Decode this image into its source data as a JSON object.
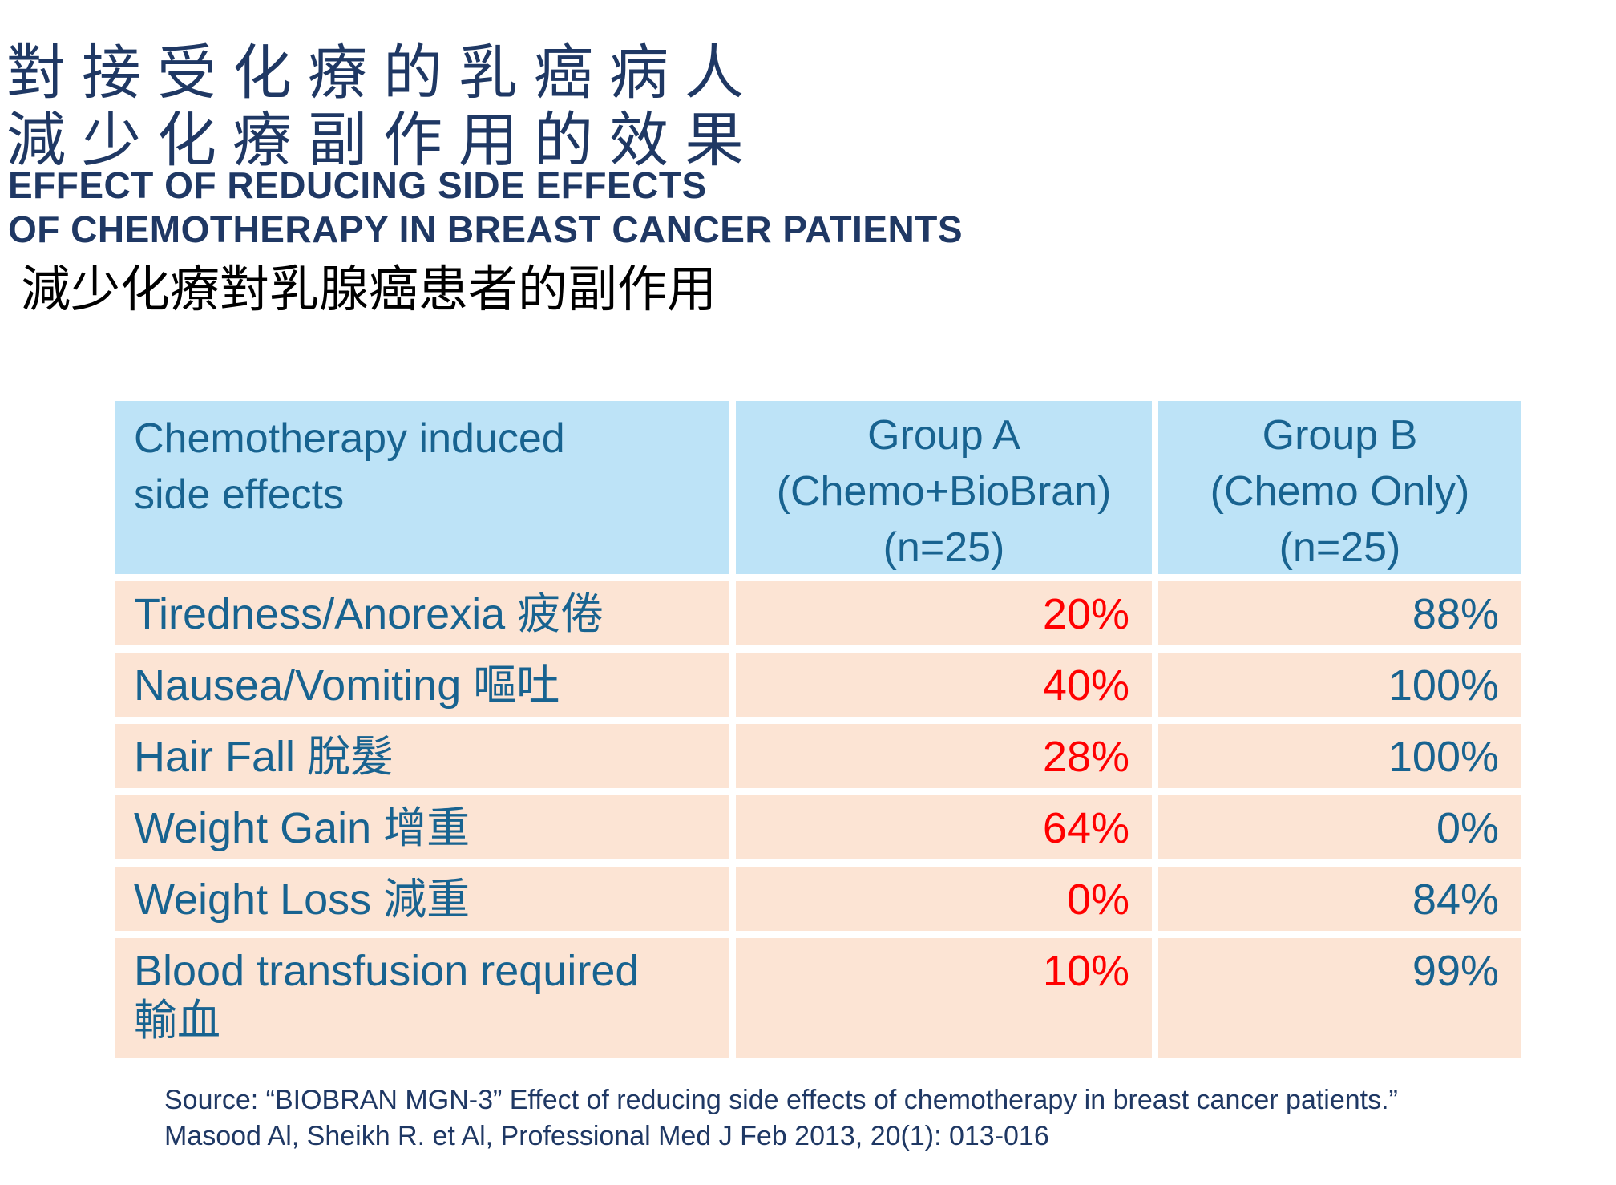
{
  "slide": {
    "title_zh_line1": "對接受化療的乳癌病人",
    "title_zh_line2": "減少化療副作用的效果",
    "title_en_line1": "EFFECT OF REDUCING SIDE EFFECTS",
    "title_en_line2": "OF CHEMOTHERAPY IN BREAST CANCER PATIENTS",
    "subtitle_zh": "減少化療對乳腺癌患者的副作用"
  },
  "colors": {
    "title_navy": "#1F3864",
    "table_text_teal": "#186390",
    "group_a_value_red": "#FF0000",
    "header_bg_blue": "#BDE3F7",
    "row_bg_peach": "#FCE4D4",
    "page_bg": "#FFFFFF"
  },
  "table": {
    "header": {
      "side_effects_lines": [
        "Chemotherapy induced",
        "side effects"
      ],
      "group_a_lines": [
        "Group A",
        "(Chemo+BioBran)",
        "(n=25)"
      ],
      "group_b_lines": [
        "Group B",
        "(Chemo Only)",
        "(n=25)"
      ]
    },
    "rows": [
      {
        "label": "Tiredness/Anorexia 疲倦",
        "group_a": "20%",
        "group_b": "88%"
      },
      {
        "label": "Nausea/Vomiting 嘔吐",
        "group_a": "40%",
        "group_b": "100%"
      },
      {
        "label": "Hair Fall 脫髮",
        "group_a": "28%",
        "group_b": "100%"
      },
      {
        "label": "Weight Gain 增重",
        "group_a": "64%",
        "group_b": "0%"
      },
      {
        "label": "Weight Loss 減重",
        "group_a": "0%",
        "group_b": "84%"
      },
      {
        "label": "Blood transfusion required 輸血",
        "group_a": "10%",
        "group_b": "99%"
      }
    ]
  },
  "source": {
    "line1": "Source: “BIOBRAN MGN-3” Effect of reducing side effects of chemotherapy in breast cancer patients.”",
    "line2": "Masood Al, Sheikh R. et Al, Professional Med J Feb 2013, 20(1): 013-016"
  },
  "chart_data": {
    "type": "table",
    "title": "Effect of reducing side effects of chemotherapy in breast cancer patients",
    "categories": [
      "Tiredness/Anorexia",
      "Nausea/Vomiting",
      "Hair Fall",
      "Weight Gain",
      "Weight Loss",
      "Blood transfusion required"
    ],
    "series": [
      {
        "name": "Group A (Chemo+BioBran) (n=25)",
        "unit": "%",
        "values": [
          20,
          40,
          28,
          64,
          0,
          10
        ]
      },
      {
        "name": "Group B (Chemo Only) (n=25)",
        "unit": "%",
        "values": [
          88,
          100,
          100,
          0,
          84,
          99
        ]
      }
    ],
    "layout_hints": {
      "group_a_values_color": "#FF0000",
      "group_b_values_color": "#186390",
      "grid": "off"
    }
  }
}
